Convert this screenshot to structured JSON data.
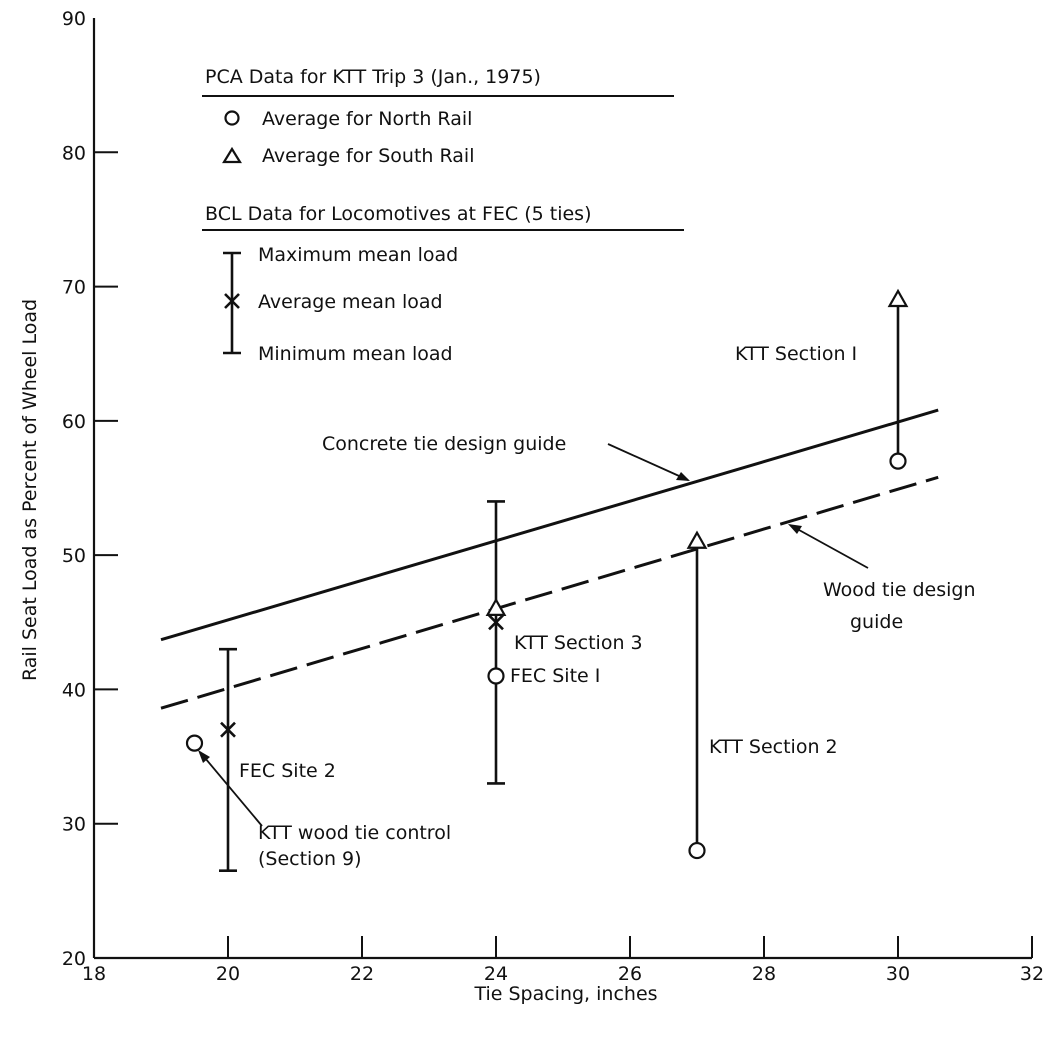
{
  "chart_data": {
    "type": "scatter",
    "xlabel": "Tie Spacing, inches",
    "ylabel": "Rail Seat Load as Percent of Wheel Load",
    "xlim": [
      18,
      32
    ],
    "ylim": [
      20,
      90
    ],
    "x_ticks": [
      "18",
      "20",
      "22",
      "24",
      "26",
      "28",
      "30",
      "32"
    ],
    "y_ticks": [
      "20",
      "30",
      "40",
      "50",
      "60",
      "70",
      "80",
      "90"
    ],
    "legend": {
      "pca_title": "PCA Data for KTT Trip 3 (Jan., 1975)",
      "north_rail": "Average for North Rail",
      "south_rail": "Average for South Rail",
      "bcl_title": "BCL Data for Locomotives at FEC (5 ties)",
      "max_load": "Maximum mean load",
      "avg_load": "Average mean load",
      "min_load": "Minimum mean load"
    },
    "series": [
      {
        "name": "Average for North Rail",
        "marker": "circle",
        "points": [
          {
            "x": 19.5,
            "y": 36
          },
          {
            "x": 24,
            "y": 41
          },
          {
            "x": 27,
            "y": 28
          },
          {
            "x": 30,
            "y": 57
          }
        ]
      },
      {
        "name": "Average for South Rail",
        "marker": "triangle",
        "points": [
          {
            "x": 24,
            "y": 46
          },
          {
            "x": 27,
            "y": 51
          },
          {
            "x": 30,
            "y": 69
          }
        ]
      },
      {
        "name": "Average mean load",
        "marker": "x",
        "points": [
          {
            "x": 20,
            "y": 37
          },
          {
            "x": 24,
            "y": 45
          }
        ]
      }
    ],
    "bcl_ranges": [
      {
        "x": 20,
        "min": 26.5,
        "avg": 37,
        "max": 43
      },
      {
        "x": 24,
        "min": 33,
        "avg": 45,
        "max": 54
      }
    ],
    "ktt_ranges": [
      {
        "x": 27,
        "north": 28,
        "south": 51
      },
      {
        "x": 30,
        "north": 57,
        "south": 69
      }
    ],
    "guides": [
      {
        "name": "Concrete tie design guide",
        "style": "solid",
        "x": [
          19,
          30.6
        ],
        "y": [
          43.7,
          60.8
        ]
      },
      {
        "name": "Wood tie design guide",
        "style": "dashed",
        "x": [
          19,
          30.6
        ],
        "y": [
          38.6,
          55.8
        ]
      }
    ],
    "annotations": {
      "concrete_guide": "Concrete tie design guide",
      "wood_guide_1": "Wood tie design",
      "wood_guide_2": "guide",
      "ktt_section_1": "KTT Section I",
      "ktt_section_2": "KTT Section 2",
      "ktt_section_3": "KTT Section 3",
      "fec_site_1": "FEC Site I",
      "fec_site_2": "FEC Site 2",
      "ktt_wood_control": "KTT wood tie control",
      "section_9": "(Section 9)"
    },
    "grid": false
  }
}
